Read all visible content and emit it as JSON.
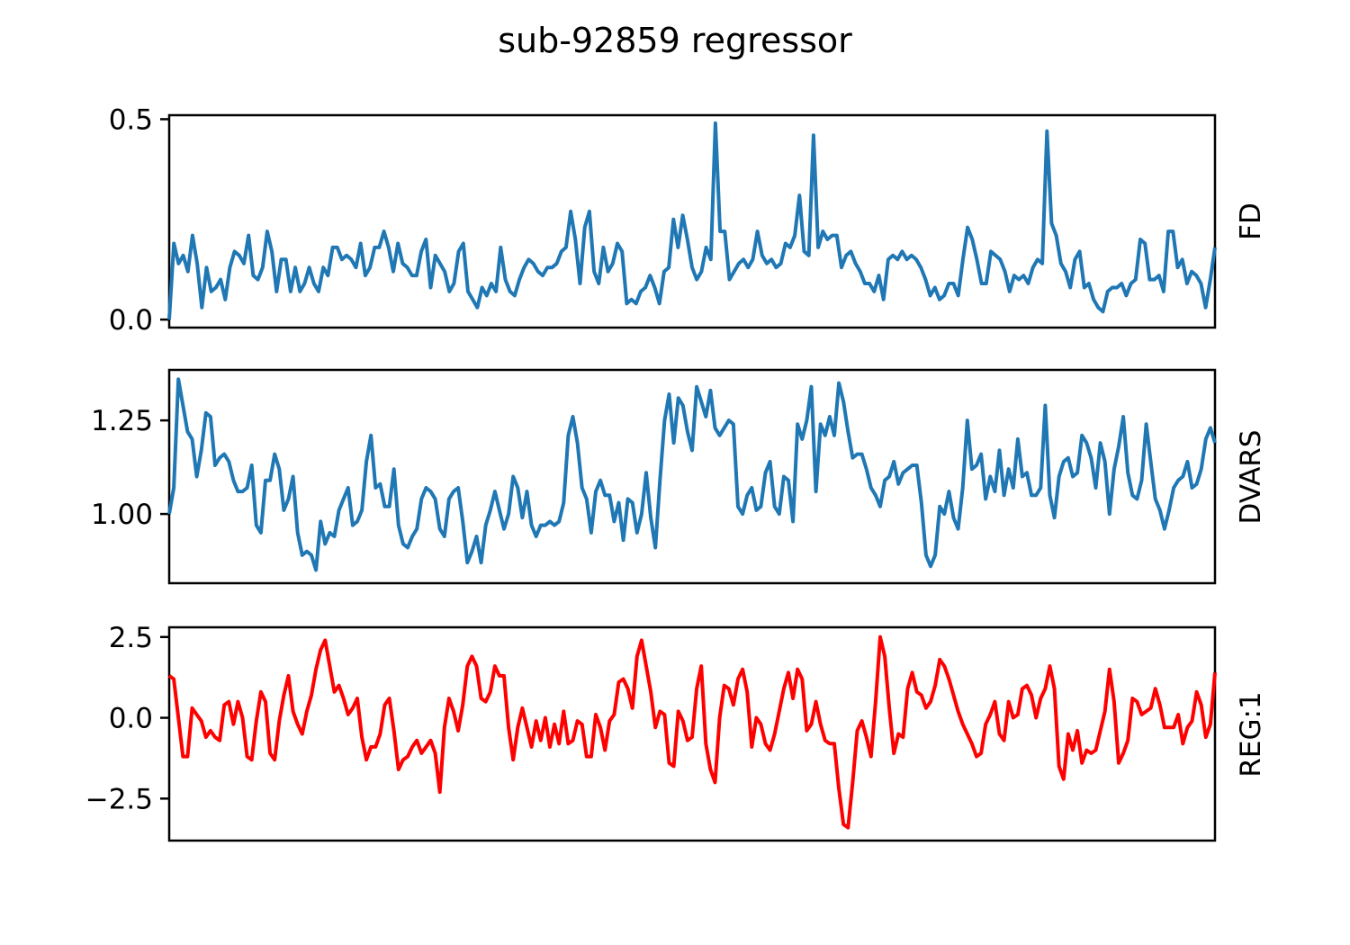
{
  "title": "sub-92859 regressor",
  "chart_data": [
    {
      "type": "line",
      "ylabel": "FD",
      "ylim": [
        -0.02,
        0.51
      ],
      "yticks": [
        0.0,
        0.5
      ],
      "ytick_labels": [
        "0.0",
        "0.5"
      ],
      "xlim": [
        0,
        280
      ],
      "color": "#1f77b4",
      "values": [
        0.0,
        0.19,
        0.14,
        0.16,
        0.12,
        0.21,
        0.14,
        0.03,
        0.13,
        0.07,
        0.08,
        0.1,
        0.05,
        0.13,
        0.17,
        0.16,
        0.14,
        0.21,
        0.11,
        0.1,
        0.13,
        0.22,
        0.17,
        0.07,
        0.15,
        0.15,
        0.07,
        0.13,
        0.07,
        0.09,
        0.13,
        0.09,
        0.07,
        0.13,
        0.11,
        0.18,
        0.18,
        0.15,
        0.16,
        0.15,
        0.13,
        0.19,
        0.11,
        0.13,
        0.18,
        0.18,
        0.22,
        0.18,
        0.12,
        0.19,
        0.14,
        0.13,
        0.11,
        0.11,
        0.17,
        0.2,
        0.08,
        0.16,
        0.14,
        0.12,
        0.07,
        0.09,
        0.17,
        0.19,
        0.07,
        0.05,
        0.03,
        0.08,
        0.06,
        0.09,
        0.07,
        0.18,
        0.1,
        0.07,
        0.06,
        0.1,
        0.13,
        0.15,
        0.14,
        0.12,
        0.11,
        0.13,
        0.13,
        0.14,
        0.17,
        0.18,
        0.27,
        0.2,
        0.09,
        0.23,
        0.27,
        0.12,
        0.09,
        0.18,
        0.12,
        0.14,
        0.19,
        0.17,
        0.04,
        0.05,
        0.04,
        0.07,
        0.08,
        0.11,
        0.08,
        0.04,
        0.12,
        0.13,
        0.25,
        0.18,
        0.26,
        0.2,
        0.13,
        0.1,
        0.12,
        0.18,
        0.15,
        0.49,
        0.22,
        0.22,
        0.1,
        0.12,
        0.14,
        0.15,
        0.13,
        0.15,
        0.22,
        0.16,
        0.14,
        0.15,
        0.13,
        0.14,
        0.19,
        0.18,
        0.21,
        0.31,
        0.17,
        0.16,
        0.46,
        0.18,
        0.22,
        0.2,
        0.21,
        0.21,
        0.13,
        0.16,
        0.17,
        0.14,
        0.12,
        0.09,
        0.09,
        0.07,
        0.11,
        0.05,
        0.15,
        0.16,
        0.15,
        0.17,
        0.15,
        0.16,
        0.15,
        0.13,
        0.1,
        0.06,
        0.08,
        0.05,
        0.06,
        0.09,
        0.09,
        0.06,
        0.15,
        0.23,
        0.2,
        0.15,
        0.09,
        0.09,
        0.17,
        0.16,
        0.15,
        0.12,
        0.07,
        0.11,
        0.1,
        0.11,
        0.09,
        0.13,
        0.15,
        0.14,
        0.47,
        0.24,
        0.21,
        0.14,
        0.12,
        0.08,
        0.15,
        0.17,
        0.08,
        0.09,
        0.05,
        0.03,
        0.02,
        0.07,
        0.08,
        0.08,
        0.09,
        0.06,
        0.09,
        0.1,
        0.2,
        0.19,
        0.1,
        0.1,
        0.11,
        0.07,
        0.22,
        0.22,
        0.13,
        0.15,
        0.09,
        0.12,
        0.11,
        0.09,
        0.03,
        0.1,
        0.18
      ]
    },
    {
      "type": "line",
      "ylabel": "DVARS",
      "ylim": [
        0.815,
        1.385
      ],
      "yticks": [
        1.0,
        1.25
      ],
      "ytick_labels": [
        "1.00",
        "1.25"
      ],
      "xlim": [
        0,
        280
      ],
      "color": "#1f77b4",
      "values": [
        1.0,
        1.07,
        1.36,
        1.29,
        1.22,
        1.2,
        1.1,
        1.17,
        1.27,
        1.26,
        1.13,
        1.15,
        1.16,
        1.14,
        1.09,
        1.06,
        1.06,
        1.07,
        1.13,
        0.97,
        0.95,
        1.09,
        1.09,
        1.16,
        1.12,
        1.01,
        1.04,
        1.1,
        0.95,
        0.89,
        0.9,
        0.89,
        0.85,
        0.98,
        0.92,
        0.95,
        0.94,
        1.01,
        1.04,
        1.07,
        0.97,
        0.98,
        1.01,
        1.14,
        1.21,
        1.07,
        1.08,
        1.02,
        1.02,
        1.12,
        0.97,
        0.92,
        0.91,
        0.94,
        0.96,
        1.04,
        1.07,
        1.06,
        1.04,
        0.96,
        0.94,
        1.04,
        1.06,
        1.07,
        0.98,
        0.87,
        0.9,
        0.94,
        0.87,
        0.97,
        1.01,
        1.06,
        1.01,
        0.96,
        1.0,
        1.1,
        1.07,
        0.99,
        1.06,
        0.97,
        0.94,
        0.97,
        0.97,
        0.98,
        0.97,
        0.98,
        1.03,
        1.21,
        1.26,
        1.19,
        1.07,
        1.04,
        0.95,
        1.06,
        1.09,
        1.05,
        1.05,
        0.98,
        1.03,
        0.93,
        1.04,
        1.03,
        0.95,
        1.0,
        1.11,
        0.99,
        0.91,
        1.09,
        1.25,
        1.32,
        1.19,
        1.31,
        1.29,
        1.22,
        1.17,
        1.34,
        1.3,
        1.26,
        1.33,
        1.23,
        1.21,
        1.23,
        1.25,
        1.24,
        1.02,
        1.0,
        1.05,
        1.07,
        1.01,
        1.02,
        1.11,
        1.14,
        1.02,
        1.0,
        1.1,
        1.09,
        0.98,
        1.24,
        1.2,
        1.25,
        1.34,
        1.06,
        1.24,
        1.21,
        1.26,
        1.21,
        1.35,
        1.3,
        1.22,
        1.15,
        1.16,
        1.16,
        1.12,
        1.07,
        1.05,
        1.02,
        1.09,
        1.1,
        1.14,
        1.08,
        1.11,
        1.12,
        1.13,
        1.13,
        1.03,
        0.89,
        0.86,
        0.89,
        1.02,
        1.0,
        1.06,
        0.99,
        0.96,
        1.07,
        1.25,
        1.12,
        1.13,
        1.16,
        1.04,
        1.1,
        1.06,
        1.17,
        1.05,
        1.12,
        1.07,
        1.2,
        1.1,
        1.11,
        1.05,
        1.05,
        1.07,
        1.29,
        1.05,
        0.99,
        1.1,
        1.14,
        1.15,
        1.1,
        1.11,
        1.21,
        1.19,
        1.15,
        1.07,
        1.19,
        1.14,
        1.0,
        1.12,
        1.18,
        1.26,
        1.11,
        1.05,
        1.04,
        1.09,
        1.24,
        1.14,
        1.04,
        1.01,
        0.96,
        1.01,
        1.07,
        1.09,
        1.1,
        1.14,
        1.07,
        1.08,
        1.12,
        1.2,
        1.23,
        1.19
      ]
    },
    {
      "type": "line",
      "ylabel": "REG:1",
      "ylim": [
        -3.8,
        2.8
      ],
      "yticks": [
        -2.5,
        0.0,
        2.5
      ],
      "ytick_labels": [
        "−2.5",
        "0.0",
        "2.5"
      ],
      "xlim": [
        0,
        280
      ],
      "color": "#ff0000",
      "values": [
        1.3,
        1.2,
        0.0,
        -1.2,
        -1.2,
        0.3,
        0.1,
        -0.1,
        -0.6,
        -0.4,
        -0.6,
        -0.7,
        0.4,
        0.5,
        -0.2,
        0.5,
        0.0,
        -1.2,
        -1.3,
        -0.1,
        0.8,
        0.5,
        -1.1,
        -1.3,
        -0.1,
        0.7,
        1.3,
        0.2,
        -0.2,
        -0.5,
        0.2,
        0.7,
        1.5,
        2.1,
        2.4,
        1.6,
        0.8,
        1.0,
        0.6,
        0.1,
        0.3,
        0.6,
        -0.6,
        -1.3,
        -0.9,
        -0.9,
        -0.5,
        0.4,
        0.6,
        -0.4,
        -1.6,
        -1.3,
        -1.2,
        -0.9,
        -0.7,
        -1.1,
        -0.9,
        -0.7,
        -1.1,
        -2.3,
        -0.3,
        0.6,
        0.2,
        -0.4,
        0.4,
        1.6,
        1.9,
        1.6,
        0.6,
        0.5,
        0.8,
        1.6,
        1.3,
        1.3,
        -0.3,
        -1.3,
        -0.3,
        0.3,
        -0.3,
        -0.9,
        -0.1,
        -0.7,
        0.0,
        -0.9,
        -0.2,
        -0.8,
        0.2,
        -0.8,
        -0.7,
        -0.1,
        -0.2,
        -1.2,
        -1.2,
        0.1,
        -0.3,
        -1.0,
        -0.1,
        0.1,
        1.1,
        1.2,
        0.9,
        0.3,
        1.9,
        2.4,
        1.6,
        0.8,
        -0.3,
        0.2,
        0.1,
        -1.4,
        -1.5,
        0.2,
        -0.1,
        -0.7,
        -0.6,
        0.9,
        1.6,
        -0.8,
        -1.6,
        -2.0,
        0.0,
        1.0,
        0.9,
        0.4,
        1.2,
        1.5,
        0.8,
        -0.9,
        0.0,
        -0.2,
        -0.8,
        -1.0,
        -0.5,
        0.2,
        0.9,
        1.4,
        0.6,
        1.5,
        1.2,
        -0.4,
        -0.2,
        0.5,
        -0.2,
        -0.7,
        -0.8,
        -0.8,
        -2.2,
        -3.3,
        -3.4,
        -2.0,
        -0.4,
        -0.1,
        -0.6,
        -1.2,
        0.5,
        2.5,
        1.9,
        0.3,
        -1.1,
        -0.5,
        -0.6,
        0.9,
        1.4,
        0.8,
        0.7,
        0.3,
        0.5,
        1.0,
        1.8,
        1.6,
        1.2,
        0.7,
        0.2,
        -0.2,
        -0.5,
        -0.8,
        -1.2,
        -1.1,
        -0.2,
        0.1,
        0.5,
        -0.5,
        -0.7,
        0.5,
        0.0,
        0.1,
        0.9,
        1.0,
        0.7,
        0.0,
        0.6,
        0.9,
        1.6,
        0.9,
        -1.5,
        -1.9,
        -0.5,
        -1.0,
        -0.4,
        -1.4,
        -1.0,
        -1.1,
        -1.0,
        -0.4,
        0.2,
        1.5,
        0.5,
        -1.4,
        -1.1,
        -0.7,
        0.6,
        0.5,
        0.1,
        0.2,
        0.3,
        0.9,
        0.4,
        -0.3,
        -0.3,
        -0.3,
        0.1,
        -0.8,
        -0.3,
        -0.1,
        0.8,
        0.4,
        -0.6,
        -0.2,
        1.4
      ]
    }
  ]
}
